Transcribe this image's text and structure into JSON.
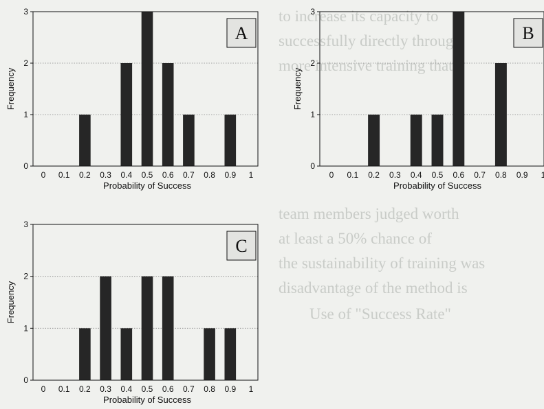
{
  "chart_data": [
    {
      "type": "bar",
      "panel_label": "A",
      "xlabel": "Probability of Success",
      "ylabel": "Frequency",
      "xticks": [
        "0",
        "0.1",
        "0.2",
        "0.3",
        "0.4",
        "0.5",
        "0.6",
        "0.7",
        "0.8",
        "0.9",
        "1"
      ],
      "yticks": [
        "0",
        "1",
        "2",
        "3"
      ],
      "ylim": [
        0,
        3
      ],
      "x": [
        0.2,
        0.4,
        0.5,
        0.6,
        0.7,
        0.9
      ],
      "values": [
        1,
        2,
        3,
        2,
        1,
        1
      ],
      "grid": "horizontal dotted"
    },
    {
      "type": "bar",
      "panel_label": "B",
      "xlabel": "Probability of Success",
      "ylabel": "Frequency",
      "xticks": [
        "0",
        "0.1",
        "0.2",
        "0.3",
        "0.4",
        "0.5",
        "0.6",
        "0.7",
        "0.8",
        "0.9",
        "1"
      ],
      "yticks": [
        "0",
        "1",
        "2",
        "3"
      ],
      "ylim": [
        0,
        3
      ],
      "x": [
        0.2,
        0.4,
        0.5,
        0.6,
        0.8
      ],
      "values": [
        1,
        1,
        1,
        3,
        2
      ],
      "grid": "horizontal dotted"
    },
    {
      "type": "bar",
      "panel_label": "C",
      "xlabel": "Probability of Success",
      "ylabel": "Frequency",
      "xticks": [
        "0",
        "0.1",
        "0.2",
        "0.3",
        "0.4",
        "0.5",
        "0.6",
        "0.7",
        "0.8",
        "0.9",
        "1"
      ],
      "yticks": [
        "0",
        "1",
        "2",
        "3"
      ],
      "ylim": [
        0,
        3
      ],
      "x": [
        0.2,
        0.3,
        0.4,
        0.5,
        0.6,
        0.8,
        0.9
      ],
      "values": [
        1,
        2,
        1,
        2,
        2,
        1,
        1
      ],
      "grid": "horizontal dotted"
    }
  ],
  "colors": {
    "bar": "#262626",
    "label_box": "#e3e4e1",
    "axis": "#111111",
    "grid": "#888888"
  },
  "background_text": {
    "right_top": [
      "to increase its capacity to",
      "successfully directly through",
      "more intensive training that"
    ],
    "right_mid": [
      "team members judged worth",
      "at least a 50% chance of",
      "the sustainability of training was",
      "disadvantage of the method is"
    ],
    "right_low": [
      "Use of \"Success Rate\""
    ]
  }
}
